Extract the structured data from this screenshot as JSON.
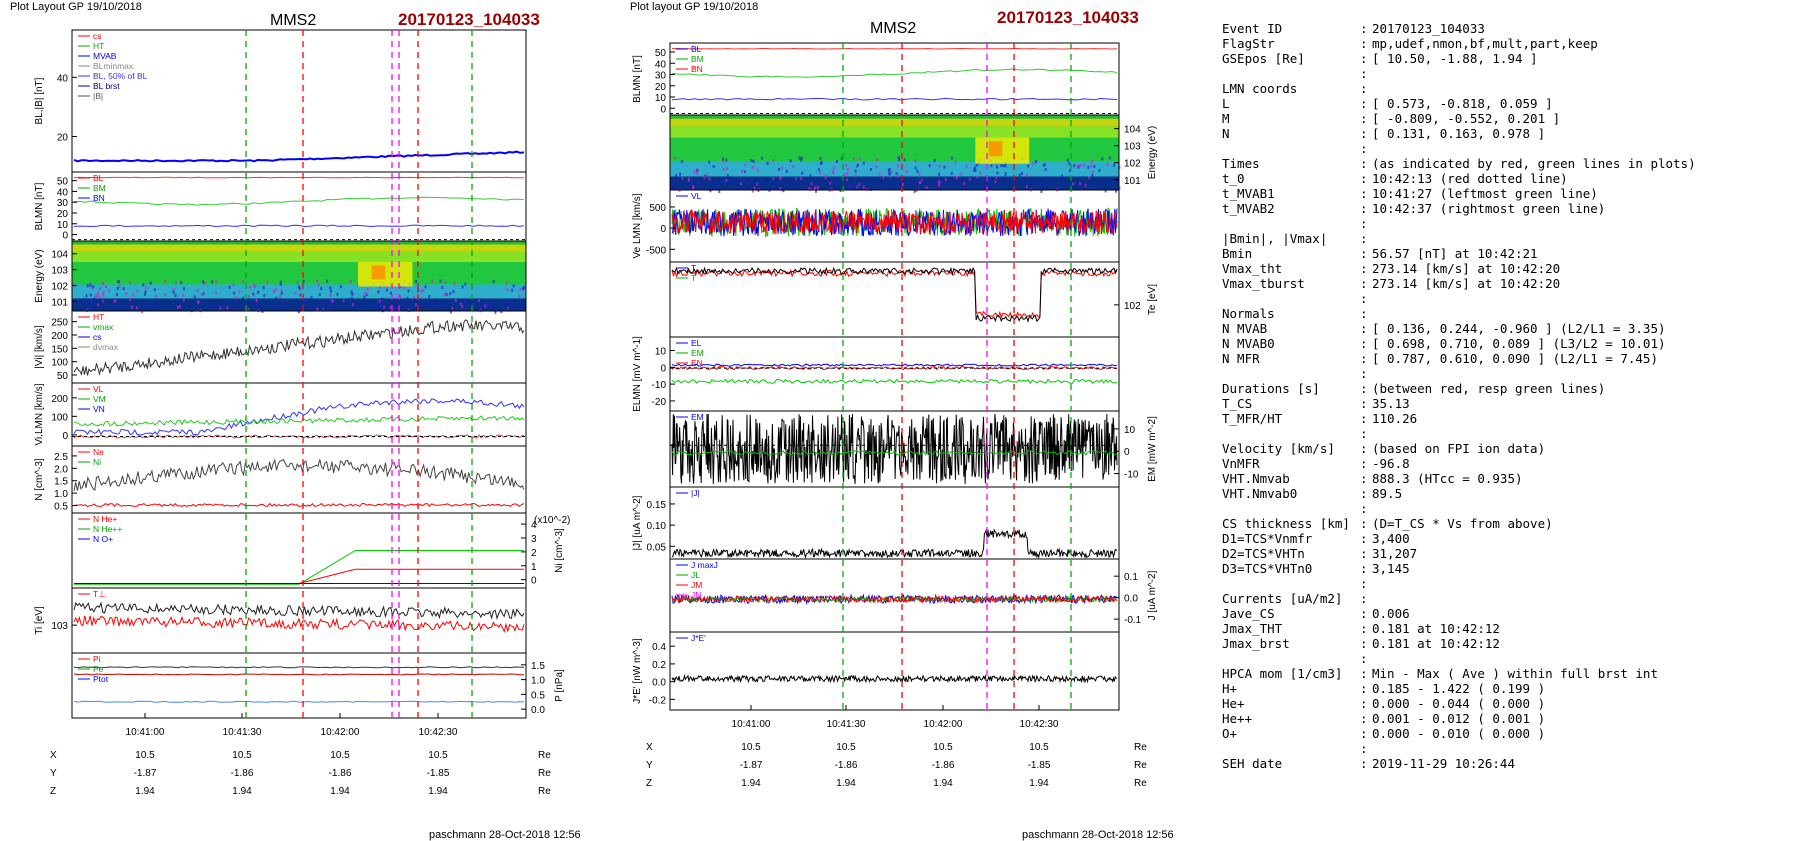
{
  "left": {
    "header": "Plot Layout GP 19/10/2018",
    "spacecraft": "MMS2",
    "event": "20170123_104033",
    "panels": [
      {
        "ylabel": "BL,|B| [nT]",
        "yticks": [
          "20",
          "40"
        ],
        "legend": [
          "cs",
          "HT",
          "MVAB",
          "BLminmax",
          "BL, 50% of BL",
          "BL brst",
          "|B|"
        ]
      },
      {
        "ylabel": "BLMN [nT]",
        "yticks": [
          "0",
          "10",
          "20",
          "30",
          "40",
          "50"
        ],
        "legend": [
          "BL",
          "BM",
          "BN"
        ]
      },
      {
        "ylabel": "Energy (eV)",
        "yticks": [
          "10^1",
          "10^2",
          "10^3",
          "10^4"
        ]
      },
      {
        "ylabel": "|Vi| [km/s]",
        "yticks": [
          "50",
          "100",
          "150",
          "200",
          "250"
        ],
        "legend": [
          "HT",
          "vmax",
          "cs",
          "dvmax"
        ]
      },
      {
        "ylabel": "Vi,LMN [km/s]",
        "yticks": [
          "0",
          "100",
          "200"
        ],
        "legend": [
          "VL",
          "VM",
          "VN"
        ]
      },
      {
        "ylabel": "N [cm^-3]",
        "yticks": [
          "0.5",
          "1.0",
          "1.5",
          "2.0",
          "2.5"
        ],
        "legend": [
          "Ne",
          "Ni"
        ]
      },
      {
        "ylabel": "Ni [cm^-3]",
        "yticks": [
          "0",
          "1",
          "2",
          "3",
          "4"
        ],
        "legend": [
          "N He+",
          "N He++",
          "N O+"
        ],
        "scale": "(x10^-2)"
      },
      {
        "ylabel": "Ti [eV]",
        "yticks": [
          "10^3"
        ],
        "legend": [
          "T⊥"
        ]
      },
      {
        "ylabel": "P [nPa]",
        "yticks": [
          "0.0",
          "0.5",
          "1.0",
          "1.5"
        ],
        "legend": [
          "Pi",
          "Pe",
          "Ptot"
        ]
      }
    ],
    "xticks": [
      "10:41:00",
      "10:41:30",
      "10:42:00",
      "10:42:30"
    ],
    "coords": {
      "X": [
        "10.5",
        "10.5",
        "10.5",
        "10.5"
      ],
      "Y": [
        "-1.87",
        "-1.86",
        "-1.86",
        "-1.85"
      ],
      "Z": [
        "1.94",
        "1.94",
        "1.94",
        "1.94"
      ],
      "unit": "Re"
    },
    "footer": "paschmann 28-Oct-2018 12:56"
  },
  "middle": {
    "header": "Plot layout GP 19/10/2018",
    "spacecraft": "MMS2",
    "event": "20170123_104033",
    "panels": [
      {
        "ylabel": "BLMN [nT]",
        "yticks": [
          "0",
          "10",
          "20",
          "30",
          "40",
          "50"
        ],
        "legend": [
          "BL",
          "BM",
          "BN"
        ]
      },
      {
        "ylabel": "Energy (eV)",
        "yticks": [
          "10^1",
          "10^2",
          "10^3",
          "10^4"
        ]
      },
      {
        "ylabel": "Ve LMN [km/s]",
        "yticks": [
          "-500",
          "0",
          "500"
        ],
        "legend": [
          "VL"
        ]
      },
      {
        "ylabel": "Te [eV]",
        "yticks": [
          "10^2"
        ],
        "legend": [
          "T",
          "T"
        ]
      },
      {
        "ylabel": "ELMN [mV m^-1]",
        "yticks": [
          "-20",
          "-10",
          "0",
          "10"
        ],
        "legend": [
          "EL",
          "EM",
          "EN"
        ]
      },
      {
        "ylabel": "EM [mW m^-2]",
        "yticks": [
          "-10",
          "0",
          "10"
        ],
        "legend": [
          "EM"
        ]
      },
      {
        "ylabel": "|J| [uA m^-2]",
        "yticks": [
          "0.05",
          "0.10",
          "0.15"
        ],
        "legend": [
          "|J|"
        ]
      },
      {
        "ylabel": "J [uA m^-2]",
        "yticks": [
          "-0.1",
          "0.0",
          "0.1"
        ],
        "legend": [
          "J maxJ",
          "JL",
          "JM",
          "JN"
        ]
      },
      {
        "ylabel": "J*E' [nW m^-3]",
        "yticks": [
          "-0.2",
          "0.0",
          "0.2",
          "0.4"
        ],
        "legend": [
          "J*E'"
        ]
      }
    ],
    "xticks": [
      "10:41:00",
      "10:41:30",
      "10:42:00",
      "10:42:30"
    ],
    "coords": {
      "X": [
        "10.5",
        "10.5",
        "10.5",
        "10.5"
      ],
      "Y": [
        "-1.87",
        "-1.86",
        "-1.86",
        "-1.85"
      ],
      "Z": [
        "1.94",
        "1.94",
        "1.94",
        "1.94"
      ],
      "unit": "Re"
    },
    "footer": "paschmann 28-Oct-2018 12:56"
  },
  "summary": [
    [
      "Event ID",
      "20170123_104033"
    ],
    [
      "FlagStr",
      "mp,udef,nmon,bf,mult,part,keep"
    ],
    [
      "GSEpos [Re]",
      "[ 10.50, -1.88, 1.94 ]"
    ],
    [
      "",
      ""
    ],
    [
      "LMN coords",
      ""
    ],
    [
      "  L",
      "[  0.573, -0.818,  0.059 ]"
    ],
    [
      "  M",
      "[ -0.809, -0.552,  0.201 ]"
    ],
    [
      "  N",
      "[  0.131,  0.163,  0.978 ]"
    ],
    [
      "",
      ""
    ],
    [
      " Times",
      "(as indicated by red, green lines in plots)"
    ],
    [
      "  t_0",
      "10:42:13  (red dotted line)"
    ],
    [
      "  t_MVAB1",
      "10:41:27  (leftmost green line)"
    ],
    [
      "  t_MVAB2",
      "10:42:37  (rightmost green line)"
    ],
    [
      "",
      ""
    ],
    [
      "|Bmin|, |Vmax|",
      ""
    ],
    [
      "  Bmin",
      "56.57 [nT]  at 10:42:21"
    ],
    [
      "  Vmax_tht",
      "273.14 [km/s]  at 10:42:20"
    ],
    [
      "  Vmax_tburst",
      "273.14 [km/s]  at 10:42:20"
    ],
    [
      "",
      ""
    ],
    [
      "Normals",
      ""
    ],
    [
      "  N MVAB",
      "[  0.136,  0.244, -0.960 ]   (L2/L1 = 3.35)"
    ],
    [
      "  N MVAB0",
      "[  0.698,  0.710,  0.089 ]   (L3/L2 = 10.01)"
    ],
    [
      "  N MFR",
      "[  0.787,  0.610,  0.090 ]   (L2/L1 = 7.45)"
    ],
    [
      "",
      ""
    ],
    [
      "Durations [s]",
      "(between red, resp green lines)"
    ],
    [
      "  T_CS",
      "35.13"
    ],
    [
      "  T_MFR/HT",
      "110.26"
    ],
    [
      "",
      ""
    ],
    [
      "Velocity [km/s]",
      "(based on FPI ion data)"
    ],
    [
      "  VnMFR",
      "-96.8"
    ],
    [
      "  VHT.Nmvab",
      "888.3  (HTcc = 0.935)"
    ],
    [
      "  VHT.Nmvab0",
      "89.5"
    ],
    [
      "",
      ""
    ],
    [
      "CS thickness [km]",
      "(D=T_CS * Vs from above)"
    ],
    [
      "  D1=TCS*Vnmfr",
      "3,400"
    ],
    [
      "  D2=TCS*VHTn",
      "31,207"
    ],
    [
      "  D3=TCS*VHTn0",
      "3,145"
    ],
    [
      "",
      ""
    ],
    [
      "Currents [uA/m2]",
      ""
    ],
    [
      "  Jave_CS",
      "0.006"
    ],
    [
      "  Jmax_THT",
      "0.181  at 10:42:12"
    ],
    [
      "  Jmax_brst",
      "0.181  at 10:42:12"
    ],
    [
      "",
      ""
    ],
    [
      "HPCA mom [1/cm3]",
      "  Min   -  Max    (  Ave   )  within full brst int"
    ],
    [
      "  H+",
      "  0.185  -  1.422  (  0.199 )"
    ],
    [
      "  He+",
      "  0.000  -  0.044  (  0.000 )"
    ],
    [
      "  He++",
      "  0.001  -  0.012  (  0.001 )"
    ],
    [
      "  O+",
      "  0.000  -  0.010  (  0.000 )"
    ],
    [
      "",
      ""
    ],
    [
      "SEH date",
      "2019-11-29 10:26:44"
    ]
  ],
  "chart_data": [
    {
      "type": "line",
      "title": "MMS2 20170123_104033",
      "x": [
        "10:41:00",
        "10:41:30",
        "10:42:00",
        "10:42:30"
      ],
      "series_summary": {
        "BL_nT": {
          "range": [
            0,
            9
          ]
        },
        "Vi_abs_kms": {
          "range": [
            50,
            273
          ]
        },
        "Ni_cm3": {
          "range": [
            0.4,
            2.5
          ]
        },
        "Ne_cm3": {
          "range": [
            0.3,
            0.9
          ]
        }
      },
      "markers": {
        "t_0": "10:42:13",
        "t_MVAB1": "10:41:27",
        "t_MVAB2": "10:42:37"
      }
    },
    {
      "type": "line",
      "title": "MMS2 20170123_104033",
      "x": [
        "10:41:00",
        "10:41:30",
        "10:42:00",
        "10:42:30"
      ],
      "series_summary": {
        "Ve_LMN_kms": {
          "range": [
            -600,
            600
          ]
        },
        "J_abs_uAm2": {
          "range": [
            0.0,
            0.181
          ]
        },
        "JE_nWm3": {
          "range": [
            -0.2,
            0.45
          ]
        }
      },
      "markers": {
        "t_0": "10:42:13",
        "t_MVAB1": "10:41:27",
        "t_MVAB2": "10:42:37"
      }
    }
  ],
  "colors": {
    "red_line": "#ff0000",
    "green_line": "#00aa00",
    "magenta_line": "#ff00ff",
    "title_red": "#990000",
    "blue": "#0000ff",
    "green": "#00cc00",
    "black": "#000000"
  }
}
